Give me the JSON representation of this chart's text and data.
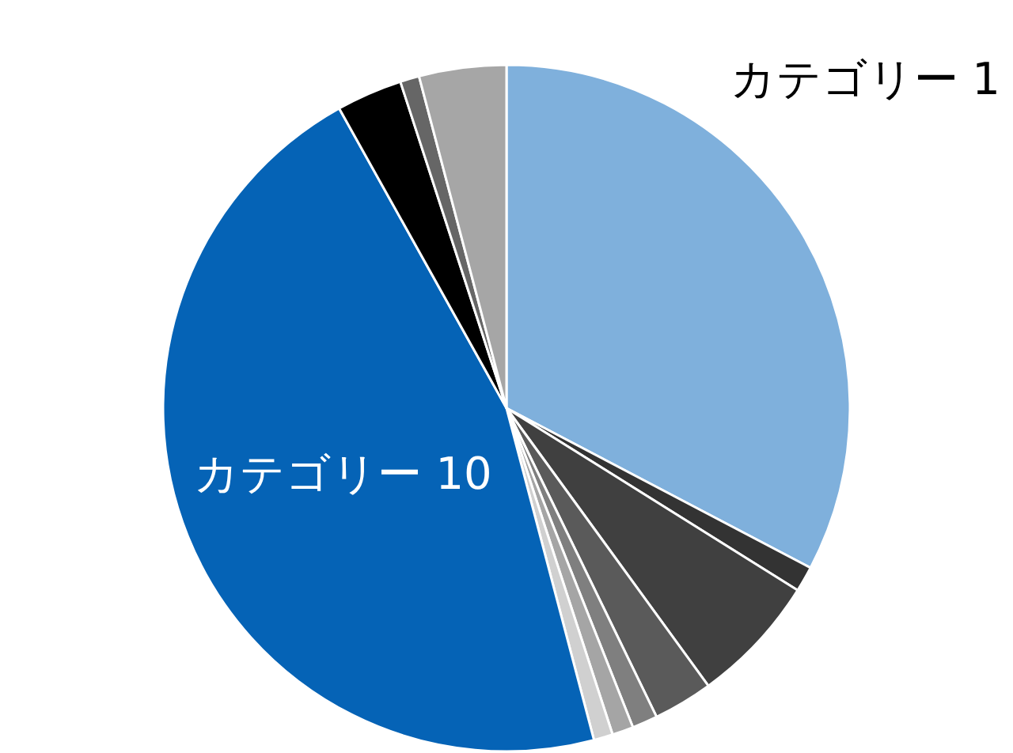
{
  "chart_data": {
    "type": "pie",
    "categories": [
      "カテゴリー 1",
      null,
      null,
      null,
      null,
      null,
      null,
      "カテゴリー 10",
      null,
      null,
      null
    ],
    "values": [
      32.7,
      1.2,
      6.1,
      2.8,
      1.2,
      1.0,
      0.9,
      46.0,
      3.1,
      0.9,
      4.1
    ],
    "colors": [
      "#7fb0dc",
      "#333333",
      "#404040",
      "#5a5a5a",
      "#7f7f7f",
      "#a5a5a5",
      "#d0d0d0",
      "#0563b6",
      "#000000",
      "#666666",
      "#a6a6a6"
    ],
    "legend": false
  }
}
